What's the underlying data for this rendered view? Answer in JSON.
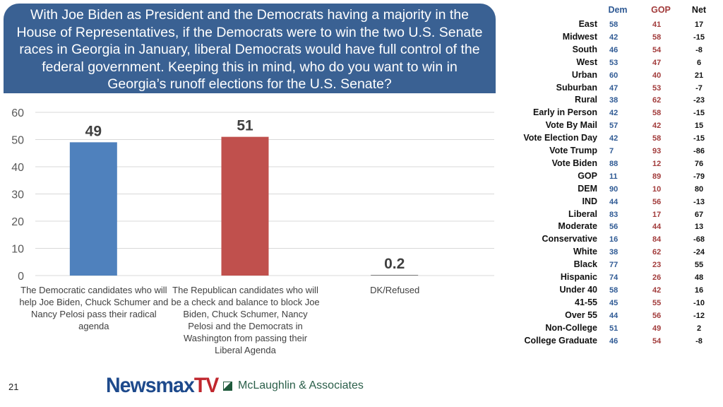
{
  "question": "With Joe Biden as President and the Democrats having a majority in the House of Representatives, if the Democrats were to win the two U.S. Senate races in Georgia in January, liberal Democrats would have full control of the federal government. Keeping this in mind, who do you want to win in Georgia’s runoff elections for the U.S. Senate?",
  "colors": {
    "dem": "#4f81bd",
    "gop": "#c0504d",
    "other": "#7f7f7f",
    "header_bg": "#3a6193"
  },
  "chart_data": {
    "type": "bar",
    "title": "",
    "xlabel": "",
    "ylabel": "",
    "ylim": [
      0,
      60
    ],
    "yticks": [
      0,
      10,
      20,
      30,
      40,
      50,
      60
    ],
    "grid": true,
    "categories": [
      "The Democratic candidates who will help Joe Biden, Chuck Schumer and Nancy Pelosi pass their radical agenda",
      "The Republican candidates who will be a check and balance to block Joe Biden, Chuck Schumer, Nancy Pelosi and the Democrats in Washington from passing their Liberal Agenda",
      "DK/Refused"
    ],
    "values": [
      49,
      51,
      0.2
    ],
    "data_labels": [
      "49",
      "51",
      "0.2"
    ]
  },
  "table": {
    "headers": {
      "dem": "Dem",
      "gop": "GOP",
      "net": "Net"
    },
    "rows": [
      {
        "label": "East",
        "dem": "58",
        "gop": "41",
        "net": "17"
      },
      {
        "label": "Midwest",
        "dem": "42",
        "gop": "58",
        "net": "-15"
      },
      {
        "label": "South",
        "dem": "46",
        "gop": "54",
        "net": "-8"
      },
      {
        "label": "West",
        "dem": "53",
        "gop": "47",
        "net": "6"
      },
      {
        "label": "Urban",
        "dem": "60",
        "gop": "40",
        "net": "21"
      },
      {
        "label": "Suburban",
        "dem": "47",
        "gop": "53",
        "net": "-7"
      },
      {
        "label": "Rural",
        "dem": "38",
        "gop": "62",
        "net": "-23"
      },
      {
        "label": "Early in Person",
        "dem": "42",
        "gop": "58",
        "net": "-15"
      },
      {
        "label": "Vote By Mail",
        "dem": "57",
        "gop": "42",
        "net": "15"
      },
      {
        "label": "Vote Election Day",
        "dem": "42",
        "gop": "58",
        "net": "-15"
      },
      {
        "label": "Vote Trump",
        "dem": "7",
        "gop": "93",
        "net": "-86"
      },
      {
        "label": "Vote Biden",
        "dem": "88",
        "gop": "12",
        "net": "76"
      },
      {
        "label": "GOP",
        "dem": "11",
        "gop": "89",
        "net": "-79"
      },
      {
        "label": "DEM",
        "dem": "90",
        "gop": "10",
        "net": "80"
      },
      {
        "label": "IND",
        "dem": "44",
        "gop": "56",
        "net": "-13"
      },
      {
        "label": "Liberal",
        "dem": "83",
        "gop": "17",
        "net": "67"
      },
      {
        "label": "Moderate",
        "dem": "56",
        "gop": "44",
        "net": "13"
      },
      {
        "label": "Conservative",
        "dem": "16",
        "gop": "84",
        "net": "-68"
      },
      {
        "label": "White",
        "dem": "38",
        "gop": "62",
        "net": "-24"
      },
      {
        "label": "Black",
        "dem": "77",
        "gop": "23",
        "net": "55"
      },
      {
        "label": "Hispanic",
        "dem": "74",
        "gop": "26",
        "net": "48"
      },
      {
        "label": "Under 40",
        "dem": "58",
        "gop": "42",
        "net": "16"
      },
      {
        "label": "41-55",
        "dem": "45",
        "gop": "55",
        "net": "-10"
      },
      {
        "label": "Over 55",
        "dem": "44",
        "gop": "56",
        "net": "-12"
      },
      {
        "label": "Non-College",
        "dem": "51",
        "gop": "49",
        "net": "2"
      },
      {
        "label": "College Graduate",
        "dem": "46",
        "gop": "54",
        "net": "-8"
      }
    ]
  },
  "footer": {
    "page_number": "21",
    "logo_newsmax": "Newsmax",
    "logo_tv": "TV",
    "logo_mclaughlin": "McLaughlin & Associates"
  }
}
